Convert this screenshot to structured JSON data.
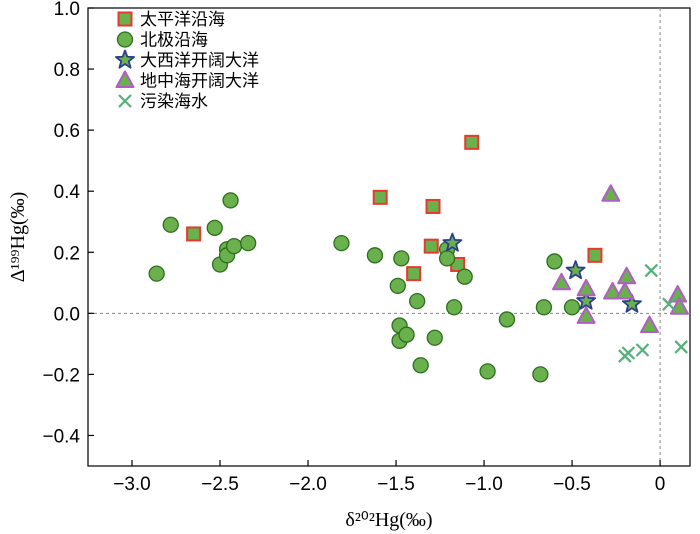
{
  "chart_data": {
    "type": "scatter",
    "xlabel": "δ²⁰²Hg(‰)",
    "ylabel": "Δ¹⁹⁹Hg(‰)",
    "xlim": [
      -3.25,
      0.17
    ],
    "ylim": [
      -0.5,
      1.0
    ],
    "x_ticks": [
      -3.0,
      -2.5,
      -2.0,
      -1.5,
      -1.0,
      -0.5,
      0
    ],
    "x_tick_labels": [
      "−3.0",
      "−2.5",
      "−2.0",
      "−1.5",
      "−1.0",
      "−0.5",
      "0"
    ],
    "y_ticks": [
      -0.4,
      -0.2,
      0.0,
      0.2,
      0.4,
      0.6,
      0.8,
      1.0
    ],
    "y_tick_labels": [
      "−0.4",
      "−0.2",
      "0.0",
      "0.2",
      "0.4",
      "0.6",
      "0.8",
      "1.0"
    ],
    "reference_lines": {
      "x": 0,
      "y": 0
    },
    "legend_position": "top-left",
    "grid": false,
    "series": [
      {
        "name": "太平洋沿海",
        "marker": "square",
        "fill": "#6ab04c",
        "stroke": "#e53a2f",
        "points": [
          [
            -2.65,
            0.26
          ],
          [
            -1.59,
            0.38
          ],
          [
            -1.29,
            0.35
          ],
          [
            -1.07,
            0.56
          ],
          [
            -1.3,
            0.22
          ],
          [
            -1.4,
            0.13
          ],
          [
            -1.15,
            0.16
          ],
          [
            -0.37,
            0.19
          ]
        ]
      },
      {
        "name": "北极沿海",
        "marker": "circle",
        "fill": "#6ab04c",
        "stroke": "#2d6e1f",
        "points": [
          [
            -2.86,
            0.13
          ],
          [
            -2.78,
            0.29
          ],
          [
            -2.53,
            0.28
          ],
          [
            -2.5,
            0.16
          ],
          [
            -2.46,
            0.21
          ],
          [
            -2.46,
            0.19
          ],
          [
            -2.44,
            0.37
          ],
          [
            -2.42,
            0.22
          ],
          [
            -2.34,
            0.23
          ],
          [
            -1.81,
            0.23
          ],
          [
            -1.62,
            0.19
          ],
          [
            -1.49,
            0.09
          ],
          [
            -1.47,
            0.18
          ],
          [
            -1.48,
            -0.04
          ],
          [
            -1.48,
            -0.09
          ],
          [
            -1.44,
            -0.07
          ],
          [
            -1.38,
            0.04
          ],
          [
            -1.36,
            -0.17
          ],
          [
            -1.28,
            -0.08
          ],
          [
            -1.21,
            0.21
          ],
          [
            -1.21,
            0.18
          ],
          [
            -1.17,
            0.02
          ],
          [
            -1.11,
            0.12
          ],
          [
            -0.98,
            -0.19
          ],
          [
            -0.87,
            -0.02
          ],
          [
            -0.68,
            -0.2
          ],
          [
            -0.66,
            0.02
          ],
          [
            -0.6,
            0.17
          ],
          [
            -0.5,
            0.02
          ]
        ]
      },
      {
        "name": "大西洋开阔大洋",
        "marker": "star",
        "fill": "#6ab04c",
        "stroke": "#2b3f8f",
        "points": [
          [
            -1.18,
            0.23
          ],
          [
            -0.48,
            0.14
          ],
          [
            -0.42,
            0.04
          ],
          [
            -0.16,
            0.03
          ]
        ]
      },
      {
        "name": "地中海开阔大洋",
        "marker": "triangle",
        "fill": "#6ab04c",
        "stroke": "#b25cc6",
        "points": [
          [
            -0.56,
            0.1
          ],
          [
            -0.42,
            0.08
          ],
          [
            -0.42,
            -0.01
          ],
          [
            -0.28,
            0.39
          ],
          [
            -0.27,
            0.07
          ],
          [
            -0.2,
            0.07
          ],
          [
            -0.19,
            0.12
          ],
          [
            -0.06,
            -0.04
          ],
          [
            0.1,
            0.06
          ],
          [
            0.11,
            0.02
          ]
        ]
      },
      {
        "name": "污染海水",
        "marker": "x",
        "fill": "none",
        "stroke": "#55b07a",
        "points": [
          [
            -0.05,
            0.14
          ],
          [
            -0.2,
            -0.14
          ],
          [
            -0.18,
            -0.13
          ],
          [
            -0.1,
            -0.12
          ],
          [
            0.05,
            0.03
          ],
          [
            0.12,
            -0.11
          ]
        ]
      }
    ]
  }
}
